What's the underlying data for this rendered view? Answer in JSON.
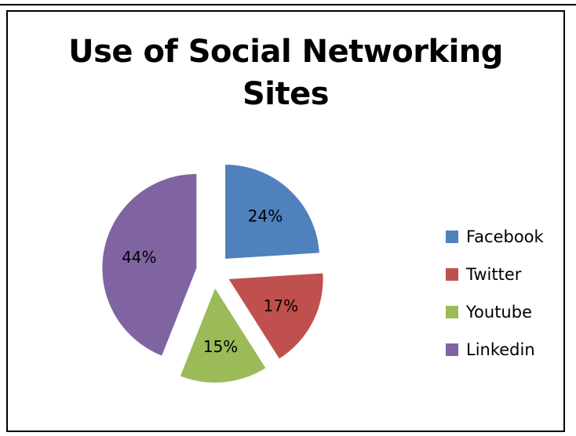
{
  "chart_data": {
    "type": "pie",
    "title": "Use of Social Networking Sites",
    "title_lines": [
      "Use of Social Networking",
      "Sites"
    ],
    "categories": [
      "Facebook",
      "Twitter",
      "Youtube",
      "Linkedin"
    ],
    "values": [
      24,
      17,
      15,
      44
    ],
    "data_labels": [
      "24%",
      "17%",
      "15%",
      "44%"
    ],
    "colors": [
      "#4F81BD",
      "#C0504D",
      "#9BBB59",
      "#8064A2"
    ],
    "exploded": true,
    "start_angle": "12 o'clock, clockwise",
    "legend_position": "right"
  }
}
